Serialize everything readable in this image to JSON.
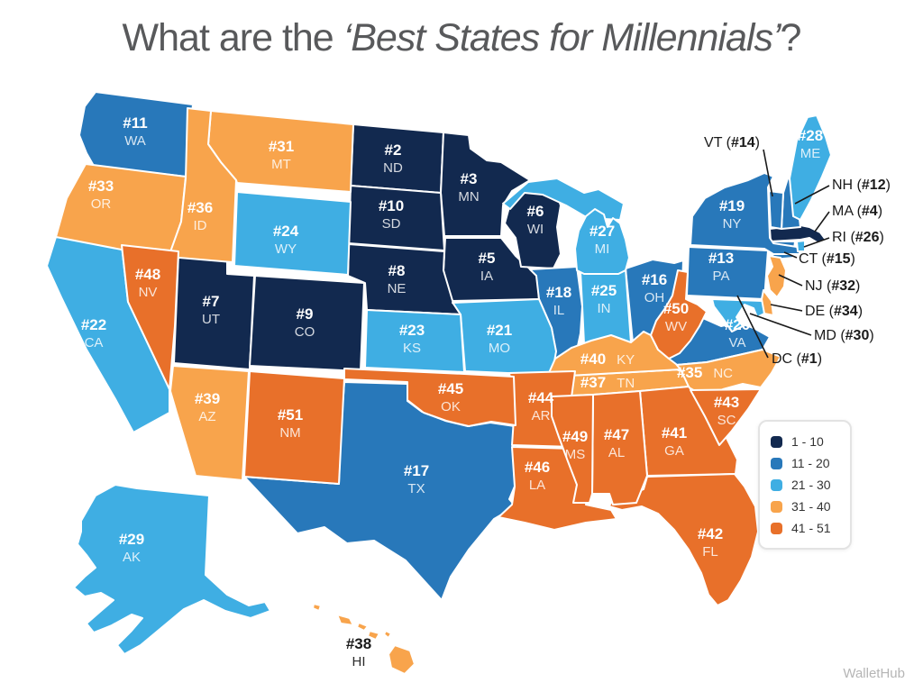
{
  "title": {
    "prefix": "What are the ",
    "emphasis": "‘Best States for Millennials’",
    "suffix": "?"
  },
  "credit": "WalletHub",
  "tiers": {
    "t1": "#12294F",
    "t2": "#2878BA",
    "t3": "#3FAEE3",
    "t4": "#F8A44C",
    "t5": "#E8702A"
  },
  "legend": {
    "items": [
      {
        "label": "1 - 10",
        "tier": "t1"
      },
      {
        "label": "11 - 20",
        "tier": "t2"
      },
      {
        "label": "21 - 30",
        "tier": "t3"
      },
      {
        "label": "31 - 40",
        "tier": "t4"
      },
      {
        "label": "41 - 51",
        "tier": "t5"
      }
    ]
  },
  "map": {
    "states": [
      {
        "abbr": "DC",
        "rank": 1,
        "rank_label": "#1",
        "tier": "t1"
      },
      {
        "abbr": "ND",
        "rank": 2,
        "rank_label": "#2",
        "tier": "t1"
      },
      {
        "abbr": "MN",
        "rank": 3,
        "rank_label": "#3",
        "tier": "t1"
      },
      {
        "abbr": "MA",
        "rank": 4,
        "rank_label": "#4",
        "tier": "t1"
      },
      {
        "abbr": "IA",
        "rank": 5,
        "rank_label": "#5",
        "tier": "t1"
      },
      {
        "abbr": "WI",
        "rank": 6,
        "rank_label": "#6",
        "tier": "t1"
      },
      {
        "abbr": "UT",
        "rank": 7,
        "rank_label": "#7",
        "tier": "t1"
      },
      {
        "abbr": "NE",
        "rank": 8,
        "rank_label": "#8",
        "tier": "t1"
      },
      {
        "abbr": "CO",
        "rank": 9,
        "rank_label": "#9",
        "tier": "t1"
      },
      {
        "abbr": "SD",
        "rank": 10,
        "rank_label": "#10",
        "tier": "t1"
      },
      {
        "abbr": "WA",
        "rank": 11,
        "rank_label": "#11",
        "tier": "t2"
      },
      {
        "abbr": "NH",
        "rank": 12,
        "rank_label": "#12",
        "tier": "t2"
      },
      {
        "abbr": "PA",
        "rank": 13,
        "rank_label": "#13",
        "tier": "t2"
      },
      {
        "abbr": "VT",
        "rank": 14,
        "rank_label": "#14",
        "tier": "t2"
      },
      {
        "abbr": "CT",
        "rank": 15,
        "rank_label": "#15",
        "tier": "t2"
      },
      {
        "abbr": "OH",
        "rank": 16,
        "rank_label": "#16",
        "tier": "t2"
      },
      {
        "abbr": "TX",
        "rank": 17,
        "rank_label": "#17",
        "tier": "t2"
      },
      {
        "abbr": "IL",
        "rank": 18,
        "rank_label": "#18",
        "tier": "t2"
      },
      {
        "abbr": "NY",
        "rank": 19,
        "rank_label": "#19",
        "tier": "t2"
      },
      {
        "abbr": "VA",
        "rank": 20,
        "rank_label": "#20",
        "tier": "t2"
      },
      {
        "abbr": "MO",
        "rank": 21,
        "rank_label": "#21",
        "tier": "t3"
      },
      {
        "abbr": "CA",
        "rank": 22,
        "rank_label": "#22",
        "tier": "t3"
      },
      {
        "abbr": "KS",
        "rank": 23,
        "rank_label": "#23",
        "tier": "t3"
      },
      {
        "abbr": "WY",
        "rank": 24,
        "rank_label": "#24",
        "tier": "t3"
      },
      {
        "abbr": "IN",
        "rank": 25,
        "rank_label": "#25",
        "tier": "t3"
      },
      {
        "abbr": "RI",
        "rank": 26,
        "rank_label": "#26",
        "tier": "t3"
      },
      {
        "abbr": "MI",
        "rank": 27,
        "rank_label": "#27",
        "tier": "t3"
      },
      {
        "abbr": "ME",
        "rank": 28,
        "rank_label": "#28",
        "tier": "t3"
      },
      {
        "abbr": "AK",
        "rank": 29,
        "rank_label": "#29",
        "tier": "t3"
      },
      {
        "abbr": "MD",
        "rank": 30,
        "rank_label": "#30",
        "tier": "t3"
      },
      {
        "abbr": "MT",
        "rank": 31,
        "rank_label": "#31",
        "tier": "t4"
      },
      {
        "abbr": "NJ",
        "rank": 32,
        "rank_label": "#32",
        "tier": "t4"
      },
      {
        "abbr": "OR",
        "rank": 33,
        "rank_label": "#33",
        "tier": "t4"
      },
      {
        "abbr": "DE",
        "rank": 34,
        "rank_label": "#34",
        "tier": "t4"
      },
      {
        "abbr": "NC",
        "rank": 35,
        "rank_label": "#35",
        "tier": "t4"
      },
      {
        "abbr": "ID",
        "rank": 36,
        "rank_label": "#36",
        "tier": "t4"
      },
      {
        "abbr": "TN",
        "rank": 37,
        "rank_label": "#37",
        "tier": "t4"
      },
      {
        "abbr": "HI",
        "rank": 38,
        "rank_label": "#38",
        "tier": "t4"
      },
      {
        "abbr": "AZ",
        "rank": 39,
        "rank_label": "#39",
        "tier": "t4"
      },
      {
        "abbr": "KY",
        "rank": 40,
        "rank_label": "#40",
        "tier": "t4"
      },
      {
        "abbr": "GA",
        "rank": 41,
        "rank_label": "#41",
        "tier": "t5"
      },
      {
        "abbr": "FL",
        "rank": 42,
        "rank_label": "#42",
        "tier": "t5"
      },
      {
        "abbr": "SC",
        "rank": 43,
        "rank_label": "#43",
        "tier": "t5"
      },
      {
        "abbr": "AR",
        "rank": 44,
        "rank_label": "#44",
        "tier": "t5"
      },
      {
        "abbr": "OK",
        "rank": 45,
        "rank_label": "#45",
        "tier": "t5"
      },
      {
        "abbr": "LA",
        "rank": 46,
        "rank_label": "#46",
        "tier": "t5"
      },
      {
        "abbr": "AL",
        "rank": 47,
        "rank_label": "#47",
        "tier": "t5"
      },
      {
        "abbr": "NV",
        "rank": 48,
        "rank_label": "#48",
        "tier": "t5"
      },
      {
        "abbr": "MS",
        "rank": 49,
        "rank_label": "#49",
        "tier": "t5"
      },
      {
        "abbr": "WV",
        "rank": 50,
        "rank_label": "#50",
        "tier": "t5"
      },
      {
        "abbr": "NM",
        "rank": 51,
        "rank_label": "#51",
        "tier": "t5"
      }
    ]
  },
  "callouts": [
    {
      "abbr": "VT",
      "rank_label": "#14"
    },
    {
      "abbr": "NH",
      "rank_label": "#12"
    },
    {
      "abbr": "MA",
      "rank_label": "#4"
    },
    {
      "abbr": "RI",
      "rank_label": "#26"
    },
    {
      "abbr": "CT",
      "rank_label": "#15"
    },
    {
      "abbr": "NJ",
      "rank_label": "#32"
    },
    {
      "abbr": "DE",
      "rank_label": "#34"
    },
    {
      "abbr": "MD",
      "rank_label": "#30"
    },
    {
      "abbr": "DC",
      "rank_label": "#1"
    }
  ]
}
